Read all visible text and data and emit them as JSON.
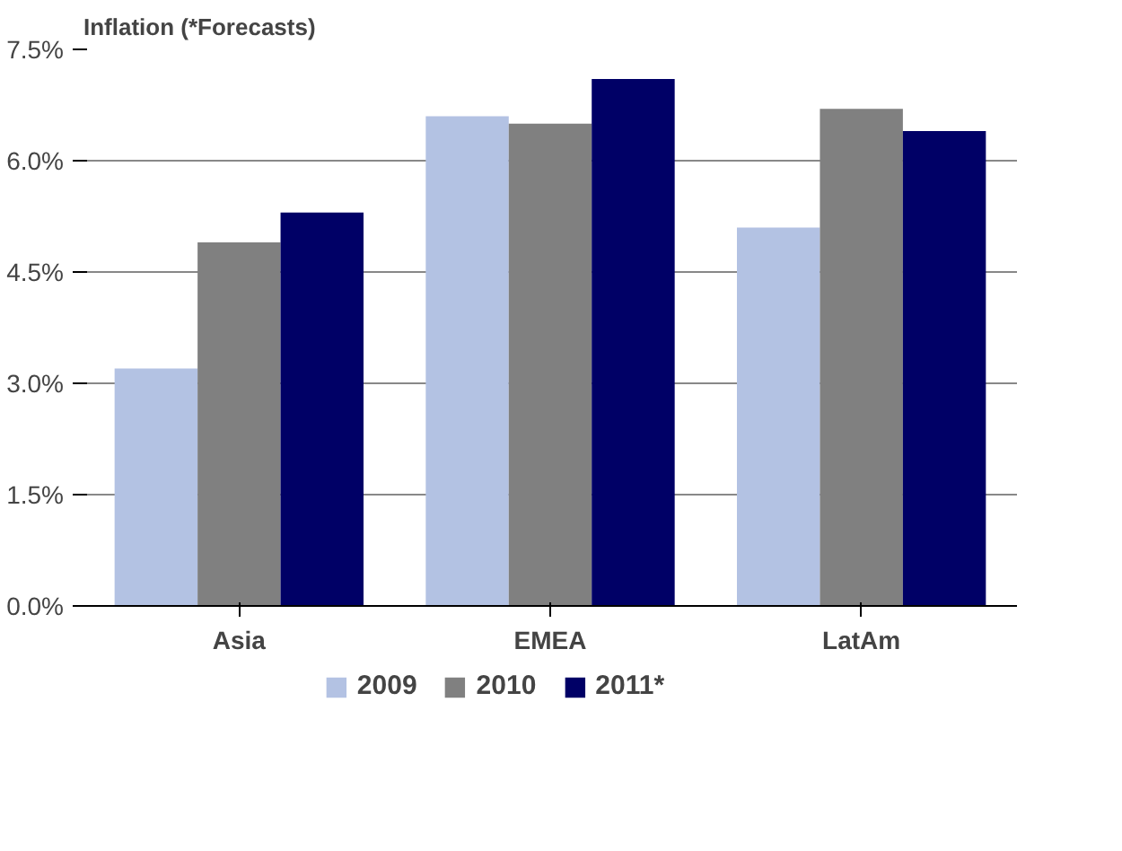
{
  "chart_data": {
    "type": "bar",
    "title": "Inflation (*Forecasts)",
    "categories": [
      "Asia",
      "EMEA",
      "LatAm"
    ],
    "series": [
      {
        "name": "2009",
        "color": "#b3c2e3",
        "values": [
          3.2,
          6.6,
          5.1
        ]
      },
      {
        "name": "2010",
        "color": "#808080",
        "values": [
          4.9,
          6.5,
          6.7
        ]
      },
      {
        "name": "2011*",
        "color": "#000066",
        "values": [
          5.3,
          7.1,
          6.4
        ]
      }
    ],
    "ylim": [
      0,
      7.5
    ],
    "yticks": [
      {
        "value": 0,
        "label": "0.0%"
      },
      {
        "value": 1.5,
        "label": "1.5%"
      },
      {
        "value": 3,
        "label": "3.0%"
      },
      {
        "value": 4.5,
        "label": "4.5%"
      },
      {
        "value": 6,
        "label": "6.0%"
      },
      {
        "value": 7.5,
        "label": "7.5%"
      }
    ],
    "grid": "y",
    "legend": "bottom"
  }
}
